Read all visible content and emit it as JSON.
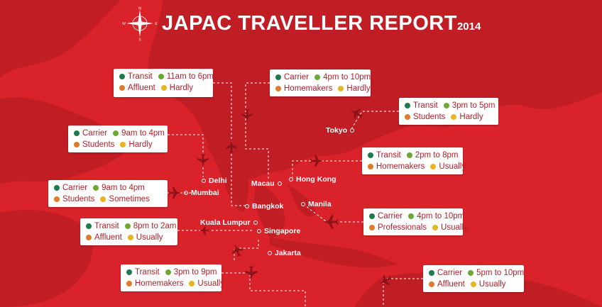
{
  "header": {
    "title": "JAPAC TRAVELLER REPORT",
    "year": "2014",
    "compass": {
      "n": "N",
      "s": "S",
      "e": "E",
      "w": "W"
    }
  },
  "colors": {
    "background": "#d9222a",
    "land": "#c11d25",
    "route": "#ffffff",
    "plane": "#8e1219",
    "dot_primary": "#1f7a4a",
    "dot_time": "#6ea832",
    "dot_audience": "#e07b2a",
    "dot_frequency": "#e6b520"
  },
  "cards": [
    {
      "id": "delhi",
      "row1": [
        "Transit",
        "11am to 6pm"
      ],
      "row2": [
        "Affluent",
        "Hardly"
      ]
    },
    {
      "id": "macau",
      "row1": [
        "Carrier",
        "4pm to 10pm"
      ],
      "row2": [
        "Homemakers",
        "Hardly"
      ]
    },
    {
      "id": "tokyo",
      "row1": [
        "Transit",
        "3pm to 5pm"
      ],
      "row2": [
        "Students",
        "Hardly"
      ]
    },
    {
      "id": "delhi2",
      "row1": [
        "Carrier",
        "9am to 4pm"
      ],
      "row2": [
        "Students",
        "Hardly"
      ]
    },
    {
      "id": "hongkong",
      "row1": [
        "Transit",
        "2pm to 8pm"
      ],
      "row2": [
        "Homemakers",
        "Usually"
      ]
    },
    {
      "id": "mumbai",
      "row1": [
        "Carrier",
        "9am to 4pm"
      ],
      "row2": [
        "Students",
        "Sometimes"
      ]
    },
    {
      "id": "manila",
      "row1": [
        "Carrier",
        "4pm to 10pm"
      ],
      "row2": [
        "Professionals",
        "Usually"
      ]
    },
    {
      "id": "kualalumpur",
      "row1": [
        "Transit",
        "8pm to 2am"
      ],
      "row2": [
        "Affluent",
        "Usually"
      ]
    },
    {
      "id": "jakarta",
      "row1": [
        "Transit",
        "3pm to 9pm"
      ],
      "row2": [
        "Homemakers",
        "Usually"
      ]
    },
    {
      "id": "southeast",
      "row1": [
        "Carrier",
        "5pm to 10pm"
      ],
      "row2": [
        "Affluent",
        "Usually"
      ]
    }
  ],
  "cities": {
    "tokyo": "Tokyo",
    "delhi": "Delhi",
    "macau": "Macau",
    "hongkong": "Hong Kong",
    "mumbai": "Mumbai",
    "bangkok": "Bangkok",
    "manila": "Manila",
    "kualalumpur": "Kuala Lumpur",
    "singapore": "Singapore",
    "jakarta": "Jakarta"
  }
}
